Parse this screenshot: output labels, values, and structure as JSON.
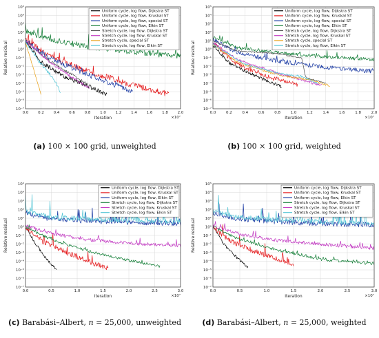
{
  "chart_data": [
    {
      "type": "line",
      "panel_label": "(a)",
      "caption": "100 × 100 grid, unweighted",
      "xlabel": "Iteration",
      "ylabel": "Relative residual",
      "x_multiplier": "×10⁷",
      "xlim": [
        0,
        2.0
      ],
      "ylim_exp": [
        -7,
        5
      ],
      "y_scale": "log",
      "x_ticks": [
        "0.0",
        "0.2",
        "0.4",
        "0.6",
        "0.8",
        "1.0",
        "1.2",
        "1.4",
        "1.6",
        "1.8",
        "2.0"
      ],
      "grid": true,
      "legend_placement": "top-right",
      "series": [
        {
          "name": "Uniform cycle, log flow, Dijkstra ST",
          "color": "#000000",
          "points": [
            [
              0,
              1
            ],
            [
              0.2,
              -1.5
            ],
            [
              0.5,
              -3.2
            ],
            [
              0.8,
              -4.3
            ],
            [
              1.05,
              -5.3
            ]
          ],
          "noise": 0.25,
          "spikes": 0
        },
        {
          "name": "Uniform cycle, log flow, Kruskal ST",
          "color": "#e41a1c",
          "points": [
            [
              0,
              1.2
            ],
            [
              0.3,
              -0.8
            ],
            [
              0.8,
              -2.6
            ],
            [
              1.3,
              -4.0
            ],
            [
              1.85,
              -5.3
            ]
          ],
          "noise": 0.35,
          "spikes": 0.4
        },
        {
          "name": "Uniform cycle, log flow, special ST",
          "color": "#1f3ea5",
          "points": [
            [
              0,
              1
            ],
            [
              0.3,
              -1.0
            ],
            [
              0.8,
              -3.0
            ],
            [
              1.3,
              -4.7
            ],
            [
              1.38,
              -5.0
            ]
          ],
          "noise": 0.3,
          "spikes": 0.2
        },
        {
          "name": "Uniform cycle, log flow, Elkin ST",
          "color": "#17803a",
          "points": [
            [
              0,
              2.2
            ],
            [
              0.3,
              1.2
            ],
            [
              0.8,
              0.3
            ],
            [
              1.4,
              -0.3
            ],
            [
              2.0,
              -0.8
            ]
          ],
          "noise": 0.35,
          "spikes": 0.6
        },
        {
          "name": "Stretch cycle, log flow, Dijkstra ST",
          "color": "#555555",
          "points": [
            [
              0,
              1
            ],
            [
              0.3,
              -1.3
            ],
            [
              0.6,
              -3.0
            ],
            [
              0.8,
              -4.1
            ]
          ],
          "noise": 0.15,
          "spikes": 0
        },
        {
          "name": "Stretch cycle, log flow, Kruskal ST",
          "color": "#c43fc4",
          "points": [
            [
              0,
              1
            ],
            [
              0.3,
              -1.4
            ],
            [
              0.6,
              -3.3
            ],
            [
              0.83,
              -4.6
            ]
          ],
          "noise": 0.15,
          "spikes": 0
        },
        {
          "name": "Stretch cycle, special ST",
          "color": "#e8a21c",
          "points": [
            [
              0,
              0.8
            ],
            [
              0.1,
              -2.2
            ],
            [
              0.2,
              -5.3
            ]
          ],
          "noise": 0.05,
          "spikes": 0
        },
        {
          "name": "Stretch cycle, log flow, Elkin ST",
          "color": "#57c6d6",
          "points": [
            [
              0,
              1
            ],
            [
              0.15,
              -1.2
            ],
            [
              0.35,
              -3.3
            ],
            [
              0.45,
              -5.0
            ]
          ],
          "noise": 0.2,
          "spikes": 0
        }
      ]
    },
    {
      "type": "line",
      "panel_label": "(b)",
      "caption": "100 × 100 grid, weighted",
      "xlabel": "Iteration",
      "ylabel": "Relative residual",
      "x_multiplier": "×10⁷",
      "xlim": [
        0,
        2.0
      ],
      "ylim_exp": [
        -7,
        5
      ],
      "y_scale": "log",
      "x_ticks": [
        "0.0",
        "0.2",
        "0.4",
        "0.6",
        "0.8",
        "1.0",
        "1.2",
        "1.4",
        "1.6",
        "1.8",
        "2.0"
      ],
      "grid": true,
      "legend_placement": "top-right",
      "series": [
        {
          "name": "Uniform cycle, log flow, Dijkstra ST",
          "color": "#000000",
          "points": [
            [
              0,
              0.5
            ],
            [
              0.2,
              -1.6
            ],
            [
              0.5,
              -3.0
            ],
            [
              0.85,
              -4.4
            ]
          ],
          "noise": 0.2,
          "spikes": 0
        },
        {
          "name": "Uniform cycle, log flow, Kruskal ST",
          "color": "#e41a1c",
          "points": [
            [
              0,
              0.8
            ],
            [
              0.3,
              -1.8
            ],
            [
              0.7,
              -3.3
            ],
            [
              1.05,
              -4.2
            ]
          ],
          "noise": 0.25,
          "spikes": 0.2
        },
        {
          "name": "Uniform cycle, log flow, special ST",
          "color": "#1f3ea5",
          "points": [
            [
              0,
              1.2
            ],
            [
              0.3,
              -0.4
            ],
            [
              0.8,
              -1.4
            ],
            [
              1.4,
              -2.1
            ],
            [
              2.0,
              -2.6
            ]
          ],
          "noise": 0.25,
          "spikes": 0.3
        },
        {
          "name": "Uniform cycle, log flow, Elkin ST",
          "color": "#17803a",
          "points": [
            [
              0,
              1.4
            ],
            [
              0.3,
              0.2
            ],
            [
              0.8,
              -0.4
            ],
            [
              1.4,
              -0.9
            ],
            [
              2.0,
              -1.2
            ]
          ],
          "noise": 0.2,
          "spikes": 0.3
        },
        {
          "name": "Stretch cycle, log flow, Dijkstra ST",
          "color": "#555555",
          "points": [
            [
              0,
              1
            ],
            [
              0.3,
              -0.2
            ],
            [
              0.8,
              -0.5
            ],
            [
              1.1,
              -1.0
            ],
            [
              1.15,
              -3.3
            ],
            [
              1.4,
              -4.0
            ]
          ],
          "noise": 0.08,
          "spikes": 0
        },
        {
          "name": "Stretch cycle, log flow, Kruskal ST",
          "color": "#c43fc4",
          "points": [
            [
              0,
              0.8
            ],
            [
              0.3,
              -1.2
            ],
            [
              0.8,
              -2.8
            ],
            [
              1.25,
              -4.0
            ],
            [
              1.35,
              -4.2
            ]
          ],
          "noise": 0.15,
          "spikes": 0
        },
        {
          "name": "Stretch cycle, special ST",
          "color": "#e8a21c",
          "points": [
            [
              0,
              0.6
            ],
            [
              0.3,
              -1.5
            ],
            [
              0.8,
              -3.0
            ],
            [
              1.2,
              -3.6
            ],
            [
              1.45,
              -4.3
            ]
          ],
          "noise": 0.12,
          "spikes": 0
        },
        {
          "name": "Stretch cycle, log flow, Elkin ST",
          "color": "#57c6d6",
          "points": [
            [
              0,
              0.6
            ],
            [
              0.4,
              -1.8
            ],
            [
              0.8,
              -2.8
            ],
            [
              1.1,
              -3.2
            ],
            [
              1.3,
              -4.0
            ]
          ],
          "noise": 0.12,
          "spikes": 0
        }
      ]
    },
    {
      "type": "line",
      "panel_label": "(c)",
      "caption_prefix": "Barabási–Albert, ",
      "caption_var": "n",
      "caption_suffix": " = 25,000, unweighted",
      "xlabel": "Iteration",
      "ylabel": "Relative residual",
      "x_multiplier": "×10⁷",
      "xlim": [
        0,
        3.0
      ],
      "ylim_exp": [
        -7,
        5
      ],
      "y_scale": "log",
      "x_ticks": [
        "0.0",
        "0.5",
        "1.0",
        "1.5",
        "2.0",
        "2.5",
        "3.0"
      ],
      "grid": true,
      "legend_placement": "top-right",
      "series": [
        {
          "name": "Uniform cycle, log flow, Dijkstra ST",
          "color": "#000000",
          "points": [
            [
              0,
              0
            ],
            [
              0.2,
              -2.0
            ],
            [
              0.4,
              -3.7
            ],
            [
              0.6,
              -5.0
            ]
          ],
          "noise": 0.15,
          "spikes": 0
        },
        {
          "name": "Uniform cycle, log flow, Kruskal ST",
          "color": "#e41a1c",
          "points": [
            [
              0,
              0
            ],
            [
              0.3,
              -1.6
            ],
            [
              0.8,
              -3.0
            ],
            [
              1.3,
              -4.2
            ],
            [
              1.6,
              -4.8
            ]
          ],
          "noise": 0.3,
          "spikes": 0.6
        },
        {
          "name": "Uniform cycle, log flow, Elkin ST",
          "color": "#1f3ea5",
          "points": [
            [
              0,
              1.6
            ],
            [
              0.5,
              0.9
            ],
            [
              1.5,
              0.6
            ],
            [
              3.0,
              0.4
            ]
          ],
          "noise": 0.3,
          "spikes": 0.8
        },
        {
          "name": "Stretch cycle, log flow, Dijkstra ST",
          "color": "#17803a",
          "points": [
            [
              0,
              0
            ],
            [
              0.5,
              -1.5
            ],
            [
              1.2,
              -2.8
            ],
            [
              2.0,
              -3.9
            ],
            [
              2.6,
              -4.6
            ]
          ],
          "noise": 0.15,
          "spikes": 0.2
        },
        {
          "name": "Stretch cycle, log flow, Kruskal ST",
          "color": "#c43fc4",
          "points": [
            [
              0,
              0.2
            ],
            [
              0.5,
              -0.8
            ],
            [
              1.2,
              -1.5
            ],
            [
              2.0,
              -1.9
            ],
            [
              3.0,
              -2.2
            ]
          ],
          "noise": 0.2,
          "spikes": 0.3
        },
        {
          "name": "Stretch cycle, log flow, Elkin ST",
          "color": "#57c6d6",
          "points": [
            [
              0,
              1.8
            ],
            [
              0.5,
              1.1
            ],
            [
              1.5,
              0.8
            ],
            [
              3.0,
              0.6
            ]
          ],
          "noise": 0.3,
          "spikes": 1.0
        }
      ]
    },
    {
      "type": "line",
      "panel_label": "(d)",
      "caption_prefix": "Barabási–Albert, ",
      "caption_var": "n",
      "caption_suffix": " = 25,000, weighted",
      "xlabel": "Iteration",
      "ylabel": "Relative residual",
      "x_multiplier": "×10⁷",
      "xlim": [
        0,
        3.0
      ],
      "ylim_exp": [
        -7,
        5
      ],
      "y_scale": "log",
      "x_ticks": [
        "0.0",
        "0.5",
        "1.0",
        "1.5",
        "2.0",
        "2.5",
        "3.0"
      ],
      "grid": true,
      "legend_placement": "top-right",
      "series": [
        {
          "name": "Uniform cycle, log flow, Dijkstra ST",
          "color": "#000000",
          "points": [
            [
              0,
              0
            ],
            [
              0.2,
              -2.0
            ],
            [
              0.45,
              -3.6
            ],
            [
              0.65,
              -4.7
            ]
          ],
          "noise": 0.15,
          "spikes": 0
        },
        {
          "name": "Uniform cycle, log flow, Kruskal ST",
          "color": "#e41a1c",
          "points": [
            [
              0,
              0
            ],
            [
              0.3,
              -1.6
            ],
            [
              0.8,
              -2.9
            ],
            [
              1.3,
              -4.0
            ],
            [
              1.5,
              -4.6
            ]
          ],
          "noise": 0.3,
          "spikes": 0.6
        },
        {
          "name": "Uniform cycle, log flow, Elkin ST",
          "color": "#1f3ea5",
          "points": [
            [
              0,
              1.6
            ],
            [
              0.5,
              0.9
            ],
            [
              1.5,
              0.5
            ],
            [
              3.0,
              0.2
            ]
          ],
          "noise": 0.3,
          "spikes": 0.8
        },
        {
          "name": "Stretch cycle, log flow, Dijkstra ST",
          "color": "#17803a",
          "points": [
            [
              0,
              0
            ],
            [
              0.5,
              -1.5
            ],
            [
              1.2,
              -2.7
            ],
            [
              2.0,
              -3.8
            ],
            [
              3.0,
              -4.3
            ]
          ],
          "noise": 0.15,
          "spikes": 0.2
        },
        {
          "name": "Stretch cycle, log flow, Kruskal ST",
          "color": "#c43fc4",
          "points": [
            [
              0,
              0.2
            ],
            [
              0.5,
              -0.9
            ],
            [
              1.2,
              -1.6
            ],
            [
              2.0,
              -2.0
            ],
            [
              3.0,
              -2.5
            ]
          ],
          "noise": 0.2,
          "spikes": 0.3
        },
        {
          "name": "Stretch cycle, log flow, Elkin ST",
          "color": "#57c6d6",
          "points": [
            [
              0,
              1.8
            ],
            [
              0.5,
              1.1
            ],
            [
              1.5,
              0.7
            ],
            [
              3.0,
              0.4
            ]
          ],
          "noise": 0.3,
          "spikes": 1.0
        }
      ]
    }
  ]
}
